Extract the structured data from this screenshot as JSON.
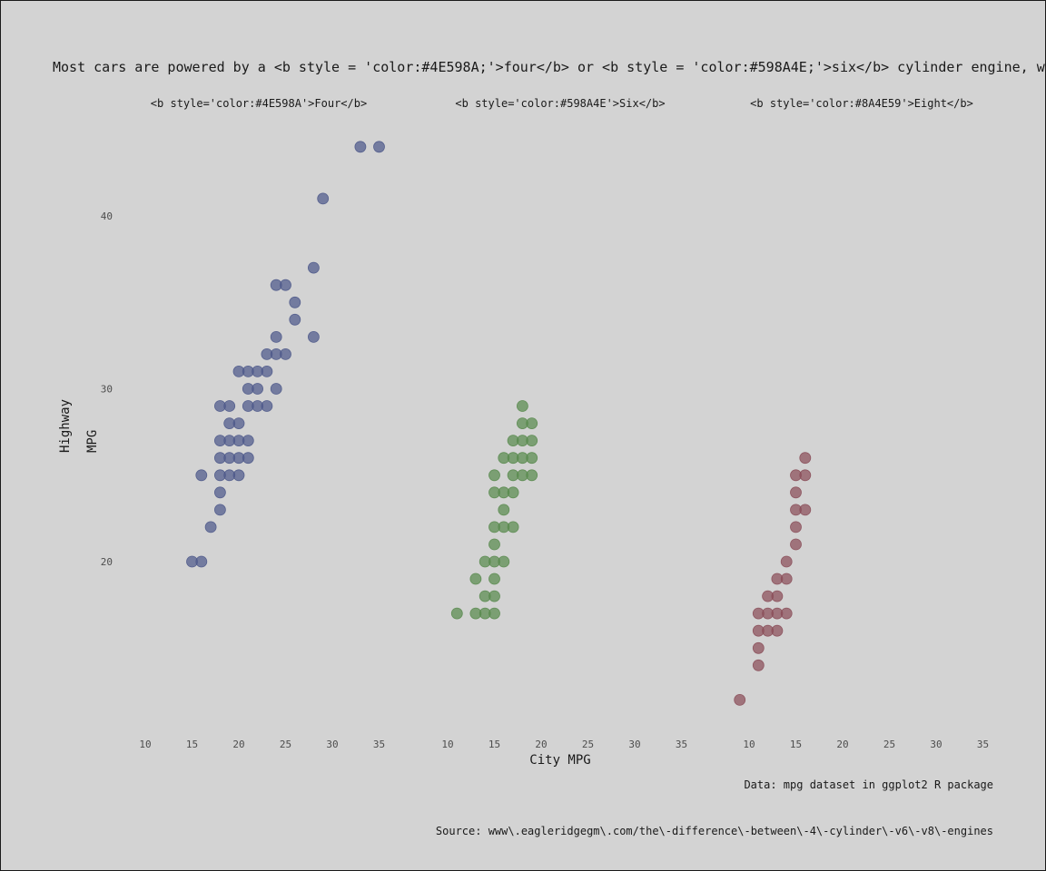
{
  "chart_data": {
    "type": "scatter",
    "title": "Most cars are powered by a <b style = 'color:#4E598A;'>four</b> or <b style = 'color:#598A4E;'>six</b> cylinder engine, wh",
    "xlabel": "City MPG",
    "ylabel": "Highway MPG",
    "caption_data": "Data: mpg dataset in ggplot2 R package",
    "caption_source": "Source: www\\.eagleridgegm\\.com/the\\-difference\\-between\\-4\\-cylinder\\-v6\\-v8\\-engines",
    "xlim": [
      8,
      40
    ],
    "ylim": [
      10,
      45
    ],
    "x_ticks": [
      10,
      15,
      20,
      25,
      30,
      35
    ],
    "x_tick_labels": [
      "10",
      "15",
      "20",
      "25",
      "30",
      "35"
    ],
    "y_ticks": [
      20,
      30,
      40
    ],
    "y_tick_labels": [
      "20",
      "30",
      "40"
    ],
    "grid": false,
    "panels": [
      {
        "label": "<b style='color:#4E598A'>Four</b>",
        "color": "#4E598A",
        "points": [
          [
            15,
            20
          ],
          [
            16,
            20
          ],
          [
            16,
            25
          ],
          [
            17,
            22
          ],
          [
            18,
            23
          ],
          [
            18,
            24
          ],
          [
            18,
            25
          ],
          [
            18,
            26
          ],
          [
            18,
            27
          ],
          [
            18,
            29
          ],
          [
            19,
            25
          ],
          [
            19,
            26
          ],
          [
            19,
            27
          ],
          [
            19,
            28
          ],
          [
            19,
            29
          ],
          [
            20,
            25
          ],
          [
            20,
            26
          ],
          [
            20,
            27
          ],
          [
            20,
            28
          ],
          [
            20,
            31
          ],
          [
            21,
            26
          ],
          [
            21,
            27
          ],
          [
            21,
            29
          ],
          [
            21,
            30
          ],
          [
            21,
            31
          ],
          [
            22,
            29
          ],
          [
            22,
            30
          ],
          [
            22,
            31
          ],
          [
            23,
            29
          ],
          [
            23,
            31
          ],
          [
            23,
            32
          ],
          [
            24,
            30
          ],
          [
            24,
            32
          ],
          [
            24,
            33
          ],
          [
            24,
            36
          ],
          [
            25,
            32
          ],
          [
            25,
            36
          ],
          [
            26,
            34
          ],
          [
            26,
            35
          ],
          [
            28,
            33
          ],
          [
            28,
            37
          ],
          [
            29,
            41
          ],
          [
            33,
            44
          ],
          [
            35,
            44
          ]
        ]
      },
      {
        "label": "<b style='color:#598A4E'>Six</b>",
        "color": "#598A4E",
        "points": [
          [
            11,
            17
          ],
          [
            13,
            17
          ],
          [
            13,
            19
          ],
          [
            14,
            17
          ],
          [
            14,
            18
          ],
          [
            14,
            20
          ],
          [
            15,
            17
          ],
          [
            15,
            18
          ],
          [
            15,
            19
          ],
          [
            15,
            20
          ],
          [
            15,
            21
          ],
          [
            15,
            22
          ],
          [
            15,
            24
          ],
          [
            15,
            25
          ],
          [
            16,
            20
          ],
          [
            16,
            22
          ],
          [
            16,
            23
          ],
          [
            16,
            24
          ],
          [
            16,
            26
          ],
          [
            17,
            22
          ],
          [
            17,
            24
          ],
          [
            17,
            25
          ],
          [
            17,
            26
          ],
          [
            17,
            27
          ],
          [
            18,
            25
          ],
          [
            18,
            26
          ],
          [
            18,
            27
          ],
          [
            18,
            28
          ],
          [
            18,
            29
          ],
          [
            19,
            25
          ],
          [
            19,
            26
          ],
          [
            19,
            27
          ],
          [
            19,
            28
          ]
        ]
      },
      {
        "label": "<b style='color:#8A4E59'>Eight</b>",
        "color": "#8A4E59",
        "points": [
          [
            9,
            12
          ],
          [
            11,
            14
          ],
          [
            11,
            15
          ],
          [
            11,
            16
          ],
          [
            11,
            17
          ],
          [
            12,
            16
          ],
          [
            12,
            17
          ],
          [
            12,
            18
          ],
          [
            13,
            16
          ],
          [
            13,
            17
          ],
          [
            13,
            18
          ],
          [
            13,
            19
          ],
          [
            14,
            17
          ],
          [
            14,
            19
          ],
          [
            14,
            20
          ],
          [
            15,
            21
          ],
          [
            15,
            22
          ],
          [
            15,
            23
          ],
          [
            15,
            24
          ],
          [
            15,
            25
          ],
          [
            16,
            23
          ],
          [
            16,
            25
          ],
          [
            16,
            26
          ]
        ]
      }
    ]
  }
}
